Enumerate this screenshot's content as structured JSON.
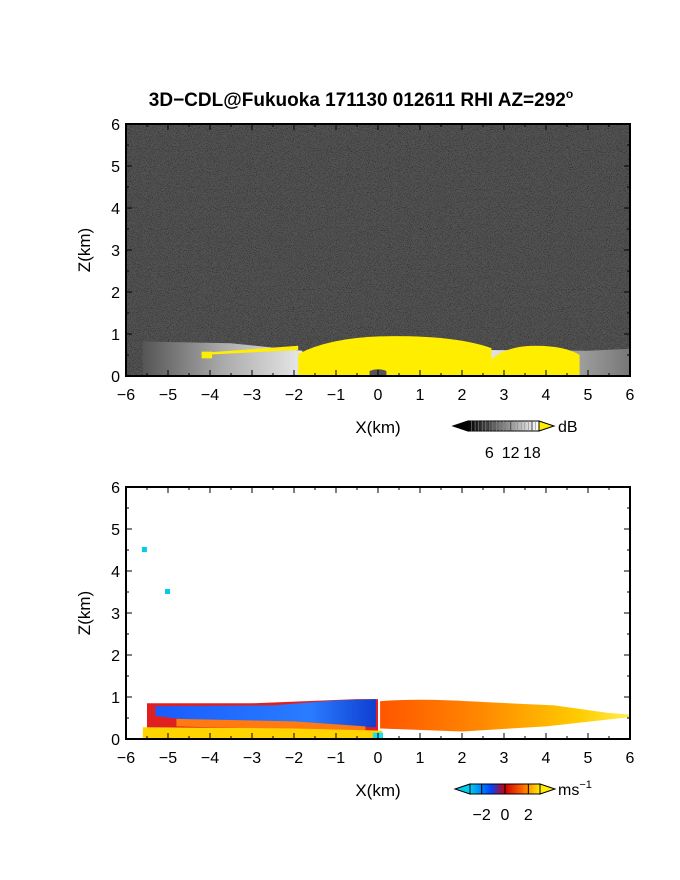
{
  "chart_data": [
    {
      "type": "heatmap",
      "title": "3D−CDL@Fukuoka 171130 012611 RHI AZ=292",
      "title_sup": "o",
      "xlabel": "X(km)",
      "ylabel": "Z(km)",
      "xlim": [
        -6,
        6
      ],
      "ylim": [
        0,
        6
      ],
      "xticks": [
        "−6",
        "−5",
        "−4",
        "−3",
        "−2",
        "−1",
        "0",
        "1",
        "2",
        "3",
        "4",
        "5",
        "6"
      ],
      "yticks": [
        "0",
        "1",
        "2",
        "3",
        "4",
        "5",
        "6"
      ],
      "background": "#3a3a3a",
      "colorbar": {
        "unit": "dB",
        "ticks": [
          "6",
          "12",
          "18"
        ],
        "tick_values": [
          6,
          12,
          18
        ],
        "range": [
          0,
          20
        ],
        "colormap": [
          "#000000",
          "#ffffff"
        ],
        "over_color": "#ffee00"
      },
      "features": [
        {
          "kind": "bright-region",
          "color": "#ffee00",
          "x": [
            -1.9,
            2.7
          ],
          "z_top": 0.95
        },
        {
          "kind": "bright-region",
          "color": "#ffee00",
          "x": [
            2.7,
            4.8
          ],
          "z_top": 0.72
        },
        {
          "kind": "gray-region",
          "x": [
            -5.6,
            -1.9
          ],
          "z_top": 0.8
        },
        {
          "kind": "gap",
          "x": [
            -0.2,
            0.2
          ],
          "z_top": 0.2
        }
      ]
    },
    {
      "type": "heatmap",
      "title": "",
      "xlabel": "X(km)",
      "ylabel": "Z(km)",
      "xlim": [
        -6,
        6
      ],
      "ylim": [
        0,
        6
      ],
      "xticks": [
        "−6",
        "−5",
        "−4",
        "−3",
        "−2",
        "−1",
        "0",
        "1",
        "2",
        "3",
        "4",
        "5",
        "6"
      ],
      "yticks": [
        "0",
        "1",
        "2",
        "3",
        "4",
        "5",
        "6"
      ],
      "background": "#ffffff",
      "colorbar": {
        "unit": "ms",
        "unit_sup": "−1",
        "ticks": [
          "−2",
          "0",
          "2"
        ],
        "tick_values": [
          -2,
          0,
          2
        ],
        "range": [
          -3,
          3
        ],
        "colormap": [
          "#00ccee",
          "#0044ff",
          "#cc0000",
          "#ff6600",
          "#ffee00"
        ]
      },
      "features": [
        {
          "kind": "band",
          "name": "negative velocity",
          "color": "#1a5cff",
          "x": [
            -5.4,
            0
          ],
          "z": [
            0.35,
            0.95
          ]
        },
        {
          "kind": "band",
          "name": "positive velocity",
          "color": "#ff8800",
          "x": [
            0,
            5.5
          ],
          "z": [
            0.2,
            0.95
          ]
        },
        {
          "kind": "band",
          "name": "near-surface positive",
          "color": "#ffcc00",
          "x": [
            -5.6,
            0.2
          ],
          "z": [
            0.05,
            0.3
          ]
        },
        {
          "kind": "speckle",
          "color": "#00ccee",
          "x": -5.55,
          "z": 4.5
        },
        {
          "kind": "speckle",
          "color": "#00ccee",
          "x": -5.0,
          "z": 3.5
        }
      ]
    }
  ]
}
